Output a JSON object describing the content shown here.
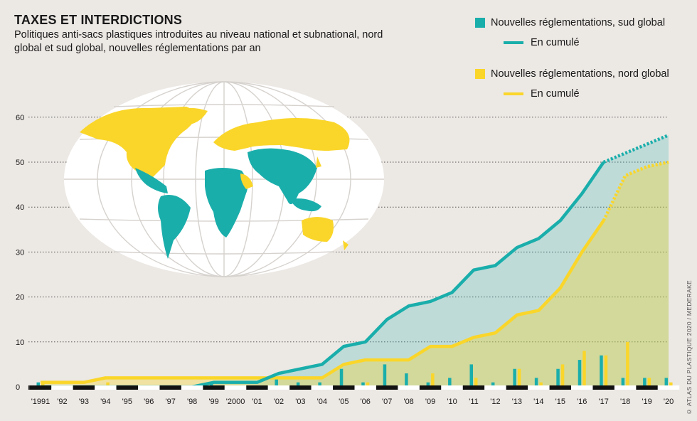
{
  "title": "TAXES ET INTERDICTIONS",
  "subtitle": "Politiques anti-sacs plastiques introduites au niveau national et subnational, nord global et sud global, nouvelles réglementations par an",
  "legend": {
    "south_bars": "Nouvelles réglementations, sud global",
    "south_line": "En cumulé",
    "north_bars": "Nouvelles réglementations, nord global",
    "north_line": "En cumulé"
  },
  "credit": "© ATLAS DU PLASTIQUE 2020 / MEDERAKE",
  "colors": {
    "south": "#1aaeab",
    "north": "#fad62a",
    "background": "#ece8e4",
    "map_ocean": "#ffffff"
  },
  "map": {
    "icon": "world-map-icon"
  },
  "chart_data": {
    "type": "bar",
    "categories": [
      "'1991",
      "'92",
      "'93",
      "'94",
      "'95",
      "'96",
      "'97",
      "'98",
      "'99",
      "'2000",
      "'01",
      "'02",
      "'03",
      "'04",
      "'05",
      "'06",
      "'07",
      "'08",
      "'09",
      "'10",
      "'11",
      "'12",
      "'13",
      "'14",
      "'15",
      "'16",
      "'17",
      "'18",
      "'19",
      "'20"
    ],
    "y_ticks": [
      0,
      10,
      20,
      30,
      40,
      50,
      60
    ],
    "ylim": [
      0,
      60
    ],
    "grid": true,
    "legend_position": "top-right",
    "series": [
      {
        "name": "Nouvelles réglementations, sud global",
        "kind": "bar",
        "values": [
          1,
          0,
          0,
          0,
          0,
          0,
          0,
          0,
          1,
          0,
          0,
          2,
          1,
          1,
          4,
          1,
          5,
          3,
          1,
          2,
          5,
          1,
          4,
          2,
          4,
          6,
          7,
          2,
          2,
          2
        ]
      },
      {
        "name": "Nouvelles réglementations, nord global",
        "kind": "bar",
        "values": [
          1,
          0,
          0,
          1,
          0,
          0,
          0,
          0,
          0,
          0,
          0,
          0,
          0,
          0,
          0,
          1,
          0,
          0,
          3,
          0,
          2,
          0,
          4,
          1,
          5,
          8,
          7,
          10,
          2,
          1
        ]
      },
      {
        "name": "En cumulé",
        "group": "sud global",
        "kind": "line",
        "values": [
          0,
          0,
          0,
          0,
          0,
          0,
          0,
          0,
          1,
          1,
          1,
          3,
          4,
          5,
          9,
          10,
          15,
          18,
          19,
          21,
          26,
          27,
          31,
          33,
          37,
          43,
          50,
          null,
          null,
          null
        ],
        "projected": [
          null,
          null,
          null,
          null,
          null,
          null,
          null,
          null,
          null,
          null,
          null,
          null,
          null,
          null,
          null,
          null,
          null,
          null,
          null,
          null,
          null,
          null,
          null,
          null,
          null,
          null,
          50,
          52,
          54,
          56
        ]
      },
      {
        "name": "En cumulé",
        "group": "nord global",
        "kind": "line",
        "values": [
          1,
          1,
          1,
          2,
          2,
          2,
          2,
          2,
          2,
          2,
          2,
          2,
          2,
          2,
          5,
          6,
          6,
          6,
          9,
          9,
          11,
          12,
          16,
          17,
          22,
          30,
          37,
          null,
          null,
          null
        ],
        "projected": [
          null,
          null,
          null,
          null,
          null,
          null,
          null,
          null,
          null,
          null,
          null,
          null,
          null,
          null,
          null,
          null,
          null,
          null,
          null,
          null,
          null,
          null,
          null,
          null,
          null,
          null,
          37,
          47,
          49,
          50
        ]
      }
    ]
  }
}
